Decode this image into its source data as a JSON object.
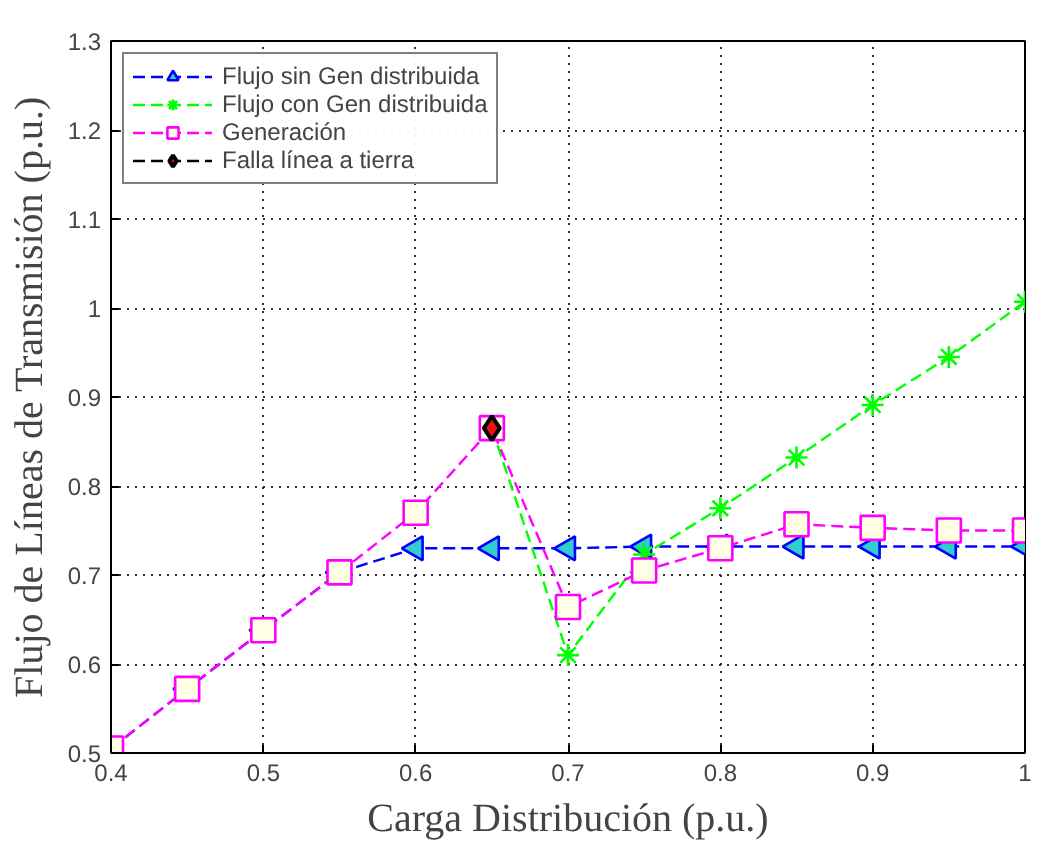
{
  "chart_data": {
    "type": "line",
    "xlabel": "Carga Distribución (p.u.)",
    "ylabel": "Flujo de Líneas de Transmisión (p.u.)",
    "x": [
      0.4,
      0.45,
      0.5,
      0.55,
      0.6,
      0.65,
      0.7,
      0.75,
      0.8,
      0.85,
      0.9,
      0.95,
      1.0
    ],
    "xlim": [
      0.4,
      1.0
    ],
    "ylim": [
      0.5,
      1.3
    ],
    "xticks": [
      0.4,
      0.5,
      0.6,
      0.7,
      0.8,
      0.9,
      1
    ],
    "yticks": [
      0.5,
      0.6,
      0.7,
      0.8,
      0.9,
      1,
      1.1,
      1.2,
      1.3
    ],
    "grid": true,
    "legend": "top left",
    "line_style": "dashed",
    "series": [
      {
        "name": "Flujo sin Gen distribuida",
        "color": "#0000ff",
        "marker": "triangle",
        "values": [
          0.505,
          0.572,
          0.638,
          0.703,
          0.73,
          0.73,
          0.73,
          0.732,
          0.732,
          0.732,
          0.732,
          0.732,
          0.732
        ]
      },
      {
        "name": "Flujo con Gen distribuida",
        "color": "#00ff00",
        "marker": "cross",
        "values": [
          null,
          null,
          null,
          null,
          null,
          0.865,
          0.61,
          0.723,
          0.775,
          0.832,
          0.891,
          0.945,
          1.007
        ]
      },
      {
        "name": "Generación",
        "color": "#ff00ff",
        "marker": "square",
        "values": [
          0.505,
          0.572,
          0.638,
          0.703,
          0.77,
          0.865,
          0.664,
          0.705,
          0.73,
          0.757,
          0.753,
          0.75,
          0.75
        ]
      },
      {
        "name": "Falla línea a tierra",
        "color": "#000000",
        "marker": "diamond",
        "x": [
          0.65
        ],
        "values": [
          0.865
        ]
      }
    ]
  }
}
